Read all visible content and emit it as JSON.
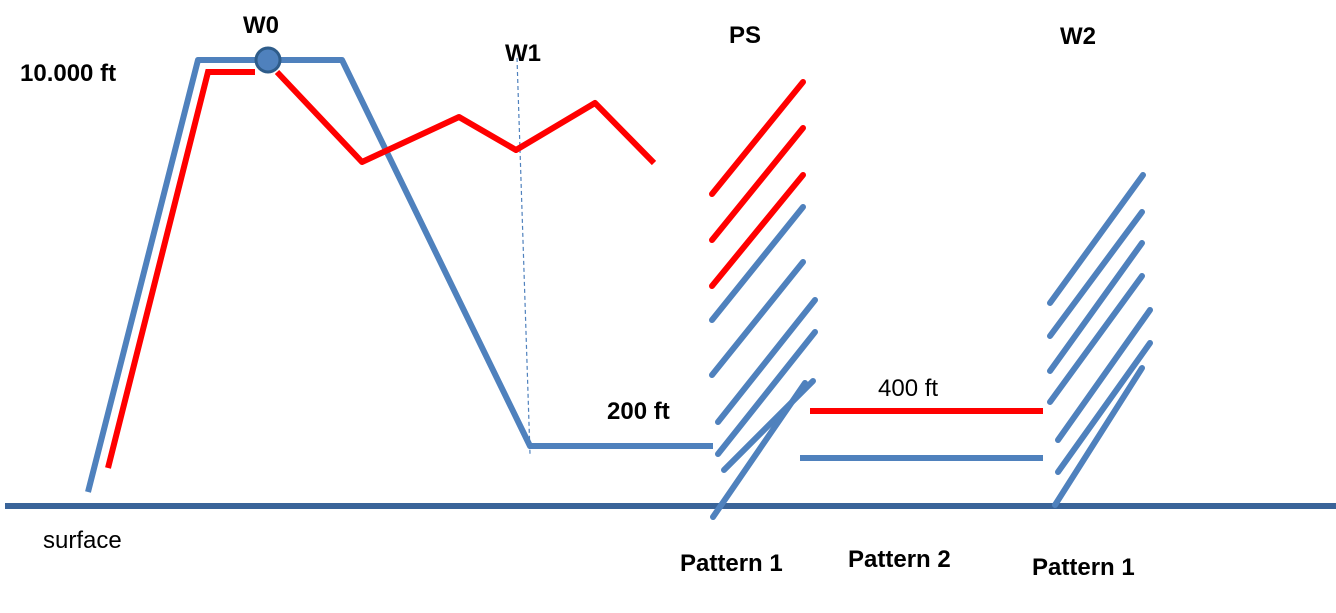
{
  "colors": {
    "blue_path": "#4F81BD",
    "red_path": "#FF0000",
    "surface_line": "#3A6499",
    "marker_fill": "#4F81BD",
    "marker_stroke": "#2E5C8A"
  },
  "labels": {
    "w0": "W0",
    "w1": "W1",
    "ps": "PS",
    "w2": "W2",
    "altitude_10000": "10.000 ft",
    "altitude_200": "200 ft",
    "altitude_400": "400 ft",
    "surface": "surface",
    "pattern1_left": "Pattern 1",
    "pattern2": "Pattern 2",
    "pattern1_right": "Pattern 1"
  }
}
